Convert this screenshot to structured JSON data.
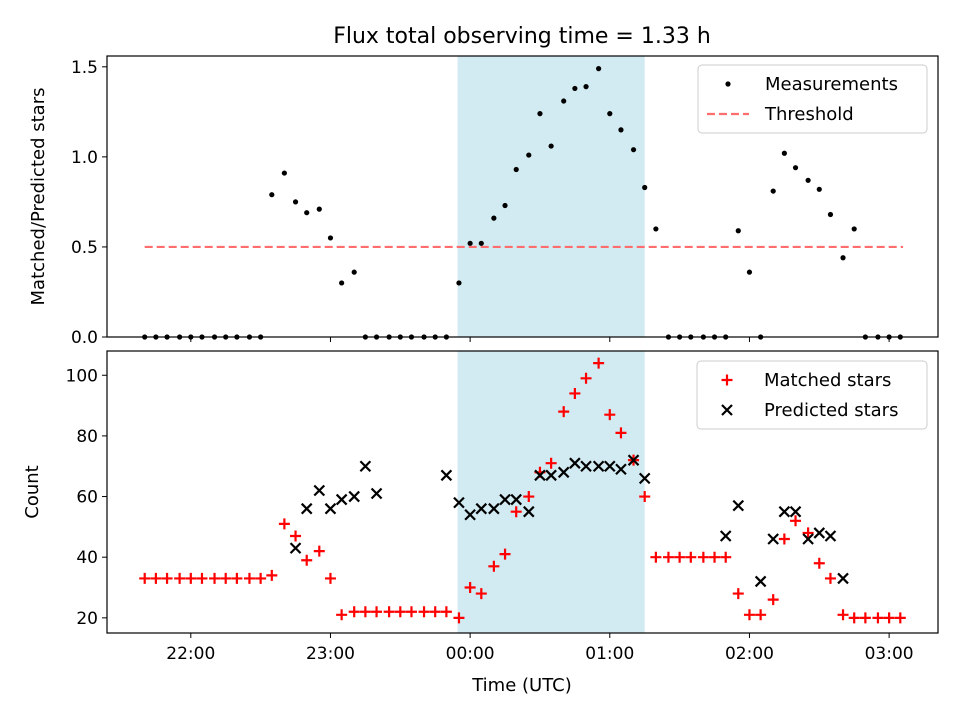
{
  "figure": {
    "title": "Flux total observing time = 1.33 h",
    "xlabel": "Time (UTC)",
    "x_tick_labels": [
      "22:00",
      "23:00",
      "00:00",
      "01:00",
      "02:00",
      "03:00"
    ],
    "highlight_color": "#add8e6"
  },
  "chart_data": [
    {
      "type": "scatter",
      "title": "Flux total observing time = 1.33 h",
      "ylabel": "Matched/Predicted stars",
      "xlabel": "",
      "x_unit": "hours since 00:00 UTC",
      "xlim": [
        -2.6,
        3.35
      ],
      "ylim": [
        0,
        1.56
      ],
      "y_ticks": [
        "0.0",
        "0.5",
        "1.0",
        "1.5"
      ],
      "highlight": {
        "x_start": -0.09,
        "x_end": 1.25
      },
      "legend": {
        "position": "top-right",
        "entries": [
          "Measurements",
          "Threshold"
        ]
      },
      "threshold": {
        "name": "Threshold",
        "value": 0.5,
        "x_start": -2.33,
        "x_end": 3.1,
        "color": "#ff6e6e",
        "style": "dashed"
      },
      "series": [
        {
          "name": "Measurements",
          "marker": "dot",
          "color": "#000000",
          "x": [
            -2.33,
            -2.25,
            -2.17,
            -2.08,
            -2.0,
            -1.92,
            -1.83,
            -1.75,
            -1.67,
            -1.58,
            -1.5,
            -1.42,
            -1.33,
            -1.25,
            -1.17,
            -1.08,
            -1.0,
            -0.92,
            -0.83,
            -0.75,
            -0.67,
            -0.58,
            -0.5,
            -0.42,
            -0.33,
            -0.25,
            -0.17,
            -0.08,
            0.0,
            0.08,
            0.17,
            0.25,
            0.33,
            0.42,
            0.5,
            0.58,
            0.67,
            0.75,
            0.83,
            0.92,
            1.0,
            1.08,
            1.17,
            1.25,
            1.33,
            1.42,
            1.5,
            1.58,
            1.67,
            1.75,
            1.83,
            1.92,
            2.0,
            2.08,
            2.17,
            2.25,
            2.33,
            2.42,
            2.5,
            2.58,
            2.67,
            2.75,
            2.83,
            2.92,
            3.0,
            3.08
          ],
          "y": [
            0,
            0,
            0,
            0,
            0,
            0,
            0,
            0,
            0,
            0,
            0,
            0.79,
            0.91,
            0.75,
            0.69,
            0.71,
            0.55,
            0.3,
            0.36,
            0,
            0,
            0,
            0,
            0,
            0,
            0,
            0,
            0.3,
            0.52,
            0.52,
            0.66,
            0.73,
            0.93,
            1.01,
            1.24,
            1.06,
            1.31,
            1.38,
            1.39,
            1.49,
            1.24,
            1.15,
            1.04,
            0.83,
            0.6,
            0,
            0,
            0,
            0,
            0,
            0,
            0.59,
            0.36,
            0,
            0.81,
            1.02,
            0.94,
            0.87,
            0.82,
            0.68,
            0.44,
            0.6,
            0,
            0,
            0,
            0
          ]
        }
      ]
    },
    {
      "type": "scatter",
      "title": "",
      "ylabel": "Count",
      "xlabel": "Time (UTC)",
      "x_unit": "hours since 00:00 UTC",
      "xlim": [
        -2.6,
        3.35
      ],
      "ylim": [
        15,
        108
      ],
      "y_ticks": [
        "20",
        "40",
        "60",
        "80",
        "100"
      ],
      "highlight": {
        "x_start": -0.09,
        "x_end": 1.25
      },
      "legend": {
        "position": "top-right",
        "entries": [
          "Matched stars",
          "Predicted stars"
        ]
      },
      "series": [
        {
          "name": "Matched stars",
          "marker": "plus",
          "color": "#ff0000",
          "x": [
            -2.33,
            -2.25,
            -2.17,
            -2.08,
            -2.0,
            -1.92,
            -1.83,
            -1.75,
            -1.67,
            -1.58,
            -1.5,
            -1.42,
            -1.33,
            -1.25,
            -1.17,
            -1.08,
            -1.0,
            -0.92,
            -0.83,
            -0.75,
            -0.67,
            -0.58,
            -0.5,
            -0.42,
            -0.33,
            -0.25,
            -0.17,
            -0.08,
            0.0,
            0.08,
            0.17,
            0.25,
            0.33,
            0.42,
            0.5,
            0.58,
            0.67,
            0.75,
            0.83,
            0.92,
            1.0,
            1.08,
            1.17,
            1.25,
            1.33,
            1.42,
            1.5,
            1.58,
            1.67,
            1.75,
            1.83,
            1.92,
            2.0,
            2.08,
            2.17,
            2.25,
            2.33,
            2.42,
            2.5,
            2.58,
            2.67,
            2.75,
            2.83,
            2.92,
            3.0,
            3.08
          ],
          "y": [
            33,
            33,
            33,
            33,
            33,
            33,
            33,
            33,
            33,
            33,
            33,
            34,
            51,
            47,
            39,
            42,
            33,
            21,
            22,
            22,
            22,
            22,
            22,
            22,
            22,
            22,
            22,
            20,
            30,
            28,
            37,
            41,
            55,
            60,
            68,
            71,
            88,
            94,
            99,
            104,
            87,
            81,
            72,
            60,
            40,
            40,
            40,
            40,
            40,
            40,
            40,
            28,
            21,
            21,
            26,
            46,
            52,
            48,
            38,
            33,
            21,
            20,
            20,
            20,
            20,
            20
          ]
        },
        {
          "name": "Predicted stars",
          "marker": "x",
          "color": "#000000",
          "x": [
            -1.25,
            -1.17,
            -1.08,
            -1.0,
            -0.92,
            -0.83,
            -0.75,
            -0.67,
            -0.17,
            -0.08,
            0.0,
            0.08,
            0.17,
            0.25,
            0.33,
            0.42,
            0.5,
            0.58,
            0.67,
            0.75,
            0.83,
            0.92,
            1.0,
            1.08,
            1.17,
            1.25,
            1.83,
            1.92,
            2.08,
            2.17,
            2.25,
            2.33,
            2.42,
            2.5,
            2.58,
            2.67
          ],
          "y": [
            43,
            56,
            62,
            56,
            59,
            60,
            70,
            61,
            67,
            58,
            54,
            56,
            56,
            59,
            59,
            55,
            67,
            67,
            68,
            71,
            70,
            70,
            70,
            69,
            72,
            66,
            47,
            57,
            32,
            46,
            55,
            55,
            46,
            48,
            47,
            33
          ]
        }
      ]
    }
  ]
}
